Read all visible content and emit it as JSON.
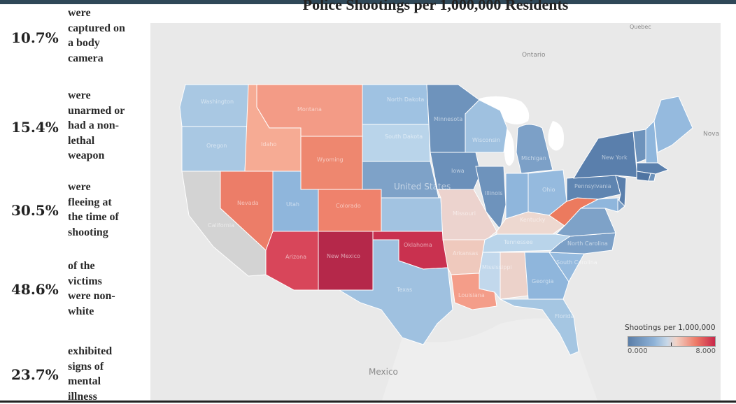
{
  "title": "Police Shootings per 1,000,000 Residents",
  "stats": [
    {
      "pct": "10.7%",
      "lines": [
        "were",
        "captured on",
        "a body",
        "camera"
      ]
    },
    {
      "pct": "15.4%",
      "lines": [
        "were",
        "unarmed or",
        "had a non-",
        "lethal",
        "weapon"
      ]
    },
    {
      "pct": "30.5%",
      "lines": [
        "were",
        "fleeing at",
        "the time of",
        "shooting"
      ]
    },
    {
      "pct": "48.6%",
      "lines": [
        "of the",
        "victims",
        "were non-",
        "white"
      ]
    },
    {
      "pct": "23.7%",
      "lines": [
        "exhibited",
        "signs of",
        "mental",
        "illness"
      ]
    }
  ],
  "legend": {
    "title": "Shootings per 1,000,000",
    "min_label": "0.000",
    "max_label": "8.000"
  },
  "map_labels": {
    "country": "United States",
    "canada_region": "Ontario",
    "quebec": "Quebec",
    "mexico": "Mexico",
    "nova": "Nova"
  },
  "state_labels": {
    "washington": "Washington",
    "oregon": "Oregon",
    "california": "California",
    "idaho": "Idaho",
    "nevada": "Nevada",
    "montana": "Montana",
    "wyoming": "Wyoming",
    "utah": "Utah",
    "colorado": "Colorado",
    "arizona": "Arizona",
    "new_mexico": "New Mexico",
    "north_dakota": "North Dakota",
    "south_dakota": "South Dakota",
    "oklahoma": "Oklahoma",
    "texas": "Texas",
    "minnesota": "Minnesota",
    "iowa": "Iowa",
    "missouri": "Missouri",
    "arkansas": "Arkansas",
    "louisiana": "Louisiana",
    "wisconsin": "Wisconsin",
    "illinois": "Illinois",
    "michigan": "Michigan",
    "ohio": "Ohio",
    "kentucky": "Kentucky",
    "tennessee": "Tennessee",
    "mississippi": "Mississippi",
    "georgia": "Georgia",
    "florida": "Florida",
    "pennsylvania": "Pennsylvania",
    "new_york": "New York",
    "north_carolina": "North Carolina",
    "south_carolina": "South Carolina"
  },
  "colors": {
    "land": "#e9e9e9",
    "water": "#ffffff",
    "no_data": "#d3d3d3",
    "border": "#ffffff",
    "state_fill": {
      "washington": "#a9c8e3",
      "oregon": "#a9c8e3",
      "california": "#d3d3d3",
      "idaho": "#f6ab94",
      "nevada": "#ec7d68",
      "montana": "#f39b86",
      "wyoming": "#ee876f",
      "utah": "#8fb6dc",
      "colorado": "#ef826c",
      "arizona": "#d8465a",
      "new_mexico": "#b5284a",
      "north_dakota": "#9fc2e2",
      "south_dakota": "#b9d4ea",
      "nebraska": "#7ea2c8",
      "kansas": "#a2c3e1",
      "oklahoma": "#c9314f",
      "texas": "#9fc1e0",
      "minnesota": "#6e93bc",
      "iowa": "#6b90ba",
      "missouri": "#ecd3ce",
      "arkansas": "#efc9bd",
      "louisiana": "#f49d89",
      "wisconsin": "#9fc1e0",
      "illinois": "#6e93bc",
      "michigan": "#7ca0c7",
      "indiana": "#8fb6dc",
      "ohio": "#95bade",
      "kentucky": "#edd8d0",
      "tennessee": "#b9d4ea",
      "mississippi": "#c2d8ec",
      "alabama": "#ecd2ca",
      "georgia": "#8fb6dc",
      "florida": "#a5c6e2",
      "south_carolina": "#95bade",
      "north_carolina": "#7ca0c7",
      "virginia": "#7ea2c8",
      "west_virginia": "#ec7a5e",
      "pennsylvania": "#5f85b1",
      "new_york": "#5a7fac",
      "vermont": "#6e93bc",
      "new_hampshire": "#8fb6dc",
      "maine": "#95bade",
      "massachusetts": "#5a7fac",
      "connecticut": "#4f74a2",
      "new_jersey": "#5a7fac",
      "maryland": "#8fb6dc",
      "delaware": "#7ca0c7",
      "rhode_island": "#6e93bc"
    }
  }
}
